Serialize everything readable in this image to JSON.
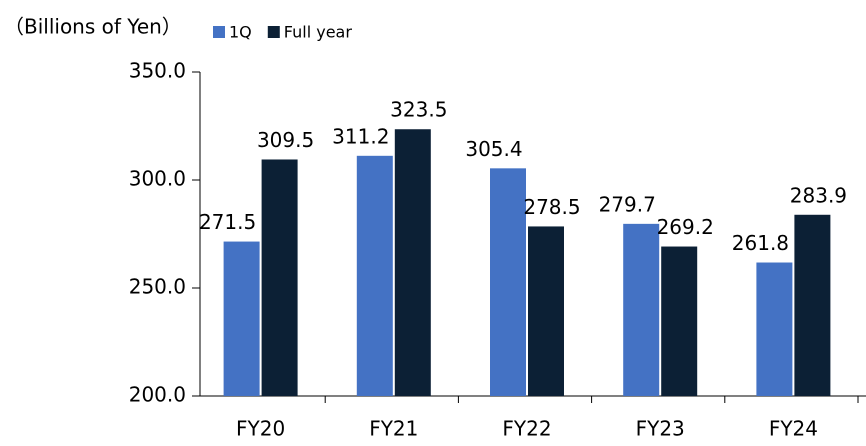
{
  "chart_data": {
    "type": "bar",
    "title": "（Billions of Yen）",
    "categories": [
      "FY20",
      "FY21",
      "FY22",
      "FY23",
      "FY24"
    ],
    "series": [
      {
        "name": "1Q",
        "color": "#4472c4",
        "values": [
          271.5,
          311.2,
          305.4,
          279.7,
          261.8
        ]
      },
      {
        "name": "Full year",
        "color": "#0c2035",
        "values": [
          309.5,
          323.5,
          278.5,
          269.2,
          283.9
        ]
      }
    ],
    "ylim": [
      200,
      350
    ],
    "yticks": [
      {
        "value": 200,
        "label": "200.0"
      },
      {
        "value": 250,
        "label": "250.0"
      },
      {
        "value": 300,
        "label": "300.0"
      },
      {
        "value": 350,
        "label": "350.0"
      }
    ],
    "grid": false
  }
}
